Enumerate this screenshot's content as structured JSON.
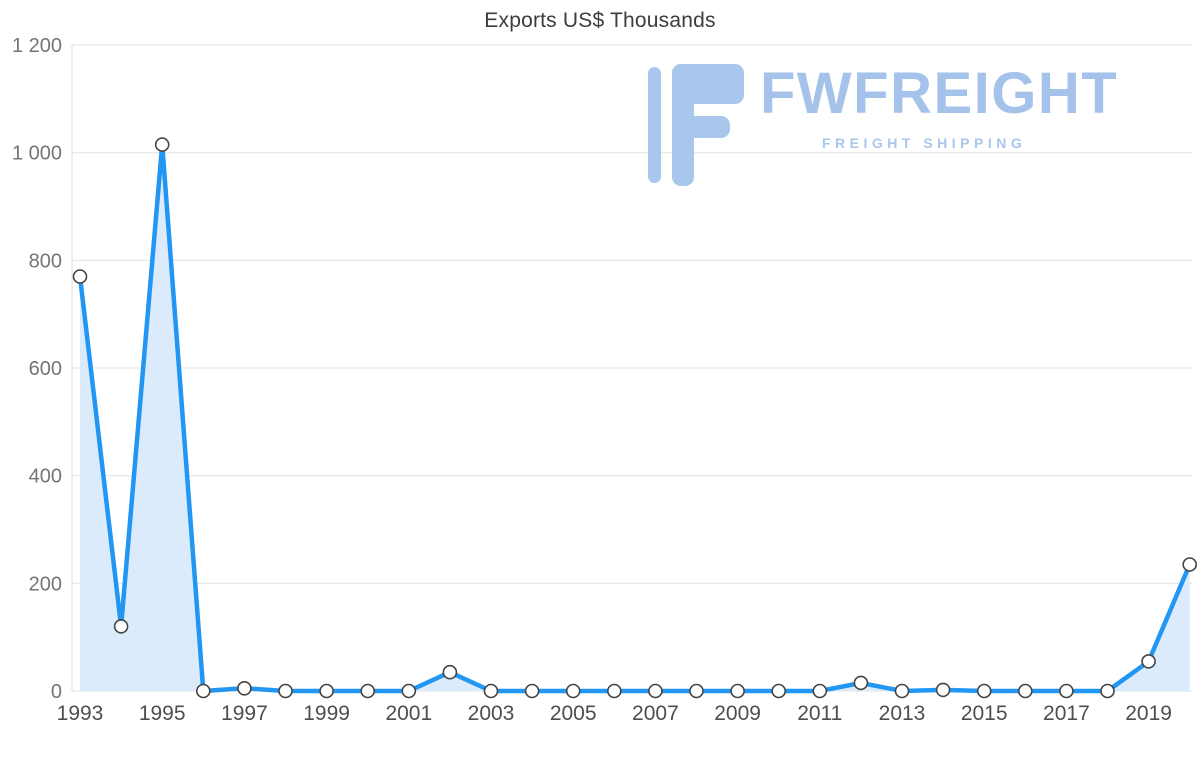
{
  "chart_data": {
    "type": "line",
    "title": "Exports US$ Thousands",
    "x": [
      1993,
      1994,
      1995,
      1996,
      1997,
      1998,
      1999,
      2000,
      2001,
      2002,
      2003,
      2004,
      2005,
      2006,
      2007,
      2008,
      2009,
      2010,
      2011,
      2012,
      2013,
      2014,
      2015,
      2016,
      2017,
      2018,
      2019,
      2020
    ],
    "values": [
      770,
      120,
      1015,
      0,
      5,
      0,
      0,
      0,
      0,
      35,
      0,
      0,
      0,
      0,
      0,
      0,
      0,
      0,
      0,
      15,
      0,
      2,
      0,
      0,
      0,
      0,
      55,
      235
    ],
    "series_name": "Exports",
    "xlabel": "",
    "ylabel": "",
    "ylim": [
      0,
      1200
    ],
    "yticks": [
      0,
      200,
      400,
      600,
      800,
      1000,
      1200
    ],
    "ytick_labels": [
      "0",
      "200",
      "400",
      "600",
      "800",
      "1 000",
      "1 200"
    ],
    "xticks": [
      1993,
      1995,
      1997,
      1999,
      2001,
      2003,
      2005,
      2007,
      2009,
      2011,
      2013,
      2015,
      2017,
      2019
    ],
    "grid": "horizontal",
    "legend": "none",
    "colors": {
      "line": "#2196f3",
      "area": "#dcebfb",
      "marker_fill": "#ffffff",
      "marker_stroke": "#444444",
      "gridline": "#e2e2e2",
      "axis_line": "#d9d9d9",
      "ytick_text": "#757575",
      "xtick_text": "#4e4e4e",
      "title_text": "#3d3d3d"
    }
  },
  "logo": {
    "brand": "FWFREIGHT",
    "tagline": "FREIGHT SHIPPING",
    "color": "#a4c2ea",
    "icon": "fwfreight-f-mark"
  }
}
